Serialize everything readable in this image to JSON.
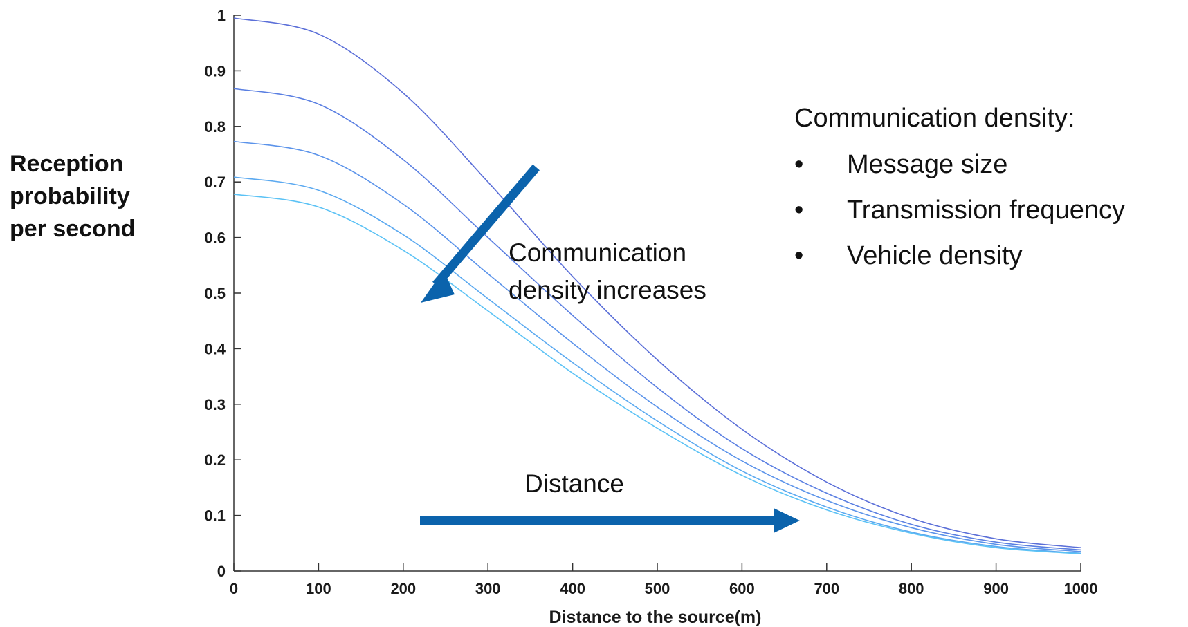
{
  "chart_data": {
    "type": "line",
    "xlabel": "Distance to the source(m)",
    "ylabel_lines": [
      "Reception",
      "probability",
      "per second"
    ],
    "xlim": [
      0,
      1000
    ],
    "ylim": [
      0,
      1
    ],
    "xticks": [
      0,
      100,
      200,
      300,
      400,
      500,
      600,
      700,
      800,
      900,
      1000
    ],
    "yticks": [
      0,
      0.1,
      0.2,
      0.3,
      0.4,
      0.5,
      0.6,
      0.7,
      0.8,
      0.9,
      1
    ],
    "ytick_labels": [
      "0",
      "0.1",
      "0.2",
      "0.3",
      "0.4",
      "0.5",
      "0.6",
      "0.7",
      "0.8",
      "0.9",
      "1"
    ],
    "grid": false,
    "x": [
      0,
      100,
      200,
      300,
      400,
      500,
      600,
      700,
      800,
      900,
      1000
    ],
    "series": [
      {
        "values": [
          0.995,
          0.966,
          0.86,
          0.7,
          0.53,
          0.38,
          0.255,
          0.16,
          0.095,
          0.058,
          0.042
        ],
        "color": "#5b6fd8"
      },
      {
        "values": [
          0.868,
          0.84,
          0.74,
          0.6,
          0.46,
          0.33,
          0.22,
          0.14,
          0.084,
          0.052,
          0.038
        ],
        "color": "#5a7fe2"
      },
      {
        "values": [
          0.773,
          0.748,
          0.66,
          0.535,
          0.41,
          0.295,
          0.198,
          0.127,
          0.078,
          0.048,
          0.035
        ],
        "color": "#5b93ea"
      },
      {
        "values": [
          0.709,
          0.685,
          0.605,
          0.49,
          0.375,
          0.27,
          0.18,
          0.115,
          0.07,
          0.044,
          0.032
        ],
        "color": "#5ba9f0"
      },
      {
        "values": [
          0.678,
          0.655,
          0.577,
          0.468,
          0.356,
          0.257,
          0.172,
          0.11,
          0.068,
          0.042,
          0.031
        ],
        "color": "#5bc2f5"
      }
    ],
    "annotations": {
      "density_arrow_label_lines": [
        "Communication",
        "density increases"
      ],
      "distance_arrow_label": "Distance",
      "arrow_color": "#0b63ac"
    }
  },
  "legend": {
    "title": "Communication density:",
    "bullet": "•",
    "items": [
      "Message size",
      "Transmission frequency",
      "Vehicle density"
    ]
  }
}
